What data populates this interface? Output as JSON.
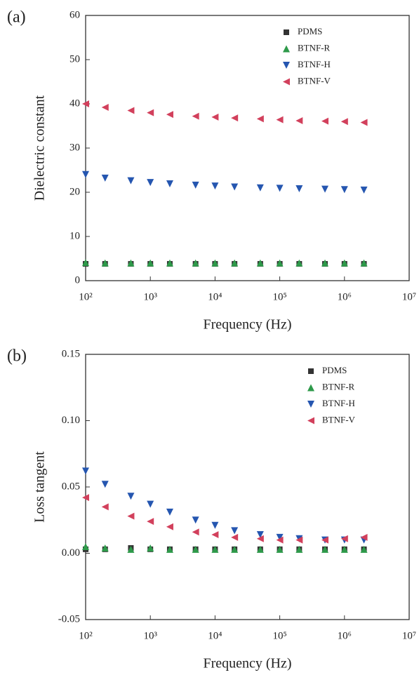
{
  "chart_data": [
    {
      "type": "scatter",
      "panel_label": "(a)",
      "y_label": "Dielectric constant",
      "x_label": "Frequency (Hz)",
      "x_scale": "log",
      "legend": "upper right",
      "x": [
        100,
        200,
        500,
        1000,
        2000,
        5000,
        10000,
        20000,
        50000,
        100000,
        200000,
        500000,
        1000000,
        2000000
      ],
      "xlim": [
        100,
        10000000
      ],
      "xticks": [
        {
          "value": 100,
          "label": "10²"
        },
        {
          "value": 1000,
          "label": "10³"
        },
        {
          "value": 10000,
          "label": "10⁴"
        },
        {
          "value": 100000,
          "label": "10⁵"
        },
        {
          "value": 1000000,
          "label": "10⁶"
        },
        {
          "value": 10000000,
          "label": "10⁷"
        }
      ],
      "ylim": [
        0,
        60
      ],
      "yticks": [
        0,
        10,
        20,
        30,
        40,
        50,
        60
      ],
      "series": [
        {
          "name": "PDMS",
          "color": "#333333",
          "marker": "square",
          "values": [
            3.8,
            3.8,
            3.8,
            3.8,
            3.8,
            3.8,
            3.8,
            3.8,
            3.8,
            3.8,
            3.8,
            3.8,
            3.8,
            3.8
          ]
        },
        {
          "name": "BTNF-R",
          "color": "#2e9a4a",
          "marker": "triangle-up",
          "values": [
            4.1,
            4.0,
            4.0,
            4.0,
            4.0,
            4.0,
            4.0,
            4.0,
            4.0,
            4.0,
            4.0,
            4.0,
            4.0,
            4.0
          ]
        },
        {
          "name": "BTNF-H",
          "color": "#2556b0",
          "marker": "triangle-down",
          "values": [
            24.0,
            23.2,
            22.6,
            22.2,
            21.9,
            21.6,
            21.4,
            21.2,
            21.0,
            20.9,
            20.8,
            20.7,
            20.6,
            20.5
          ]
        },
        {
          "name": "BTNF-V",
          "color": "#d2405c",
          "marker": "triangle-left",
          "values": [
            40.0,
            39.2,
            38.5,
            38.0,
            37.6,
            37.2,
            37.0,
            36.8,
            36.6,
            36.4,
            36.2,
            36.1,
            36.0,
            35.8
          ]
        }
      ]
    },
    {
      "type": "scatter",
      "panel_label": "(b)",
      "y_label": "Loss tangent",
      "x_label": "Frequency (Hz)",
      "x_scale": "log",
      "legend": "upper right",
      "x": [
        100,
        200,
        500,
        1000,
        2000,
        5000,
        10000,
        20000,
        50000,
        100000,
        200000,
        500000,
        1000000,
        2000000
      ],
      "xlim": [
        100,
        10000000
      ],
      "xticks": [
        {
          "value": 100,
          "label": "10²"
        },
        {
          "value": 1000,
          "label": "10³"
        },
        {
          "value": 10000,
          "label": "10⁴"
        },
        {
          "value": 100000,
          "label": "10⁵"
        },
        {
          "value": 1000000,
          "label": "10⁶"
        },
        {
          "value": 10000000,
          "label": "10⁷"
        }
      ],
      "ylim": [
        -0.05,
        0.15
      ],
      "yticks": [
        -0.05,
        {
          "value": 0,
          "label": "0.00"
        },
        0.05,
        {
          "value": 0.1,
          "label": "0.10"
        },
        0.15
      ],
      "series": [
        {
          "name": "PDMS",
          "color": "#333333",
          "marker": "square",
          "values": [
            0.003,
            0.003,
            0.004,
            0.003,
            0.003,
            0.003,
            0.003,
            0.003,
            0.003,
            0.003,
            0.003,
            0.003,
            0.003,
            0.003
          ]
        },
        {
          "name": "BTNF-R",
          "color": "#2e9a4a",
          "marker": "triangle-up",
          "values": [
            0.005,
            0.004,
            0.003,
            0.004,
            0.003,
            0.003,
            0.003,
            0.003,
            0.003,
            0.003,
            0.003,
            0.003,
            0.003,
            0.003
          ]
        },
        {
          "name": "BTNF-H",
          "color": "#2556b0",
          "marker": "triangle-down",
          "values": [
            0.062,
            0.052,
            0.043,
            0.037,
            0.031,
            0.025,
            0.021,
            0.017,
            0.014,
            0.012,
            0.011,
            0.01,
            0.01,
            0.01
          ]
        },
        {
          "name": "BTNF-V",
          "color": "#d2405c",
          "marker": "triangle-left",
          "values": [
            0.042,
            0.035,
            0.028,
            0.024,
            0.02,
            0.016,
            0.014,
            0.012,
            0.011,
            0.01,
            0.01,
            0.01,
            0.011,
            0.012
          ]
        }
      ]
    }
  ]
}
